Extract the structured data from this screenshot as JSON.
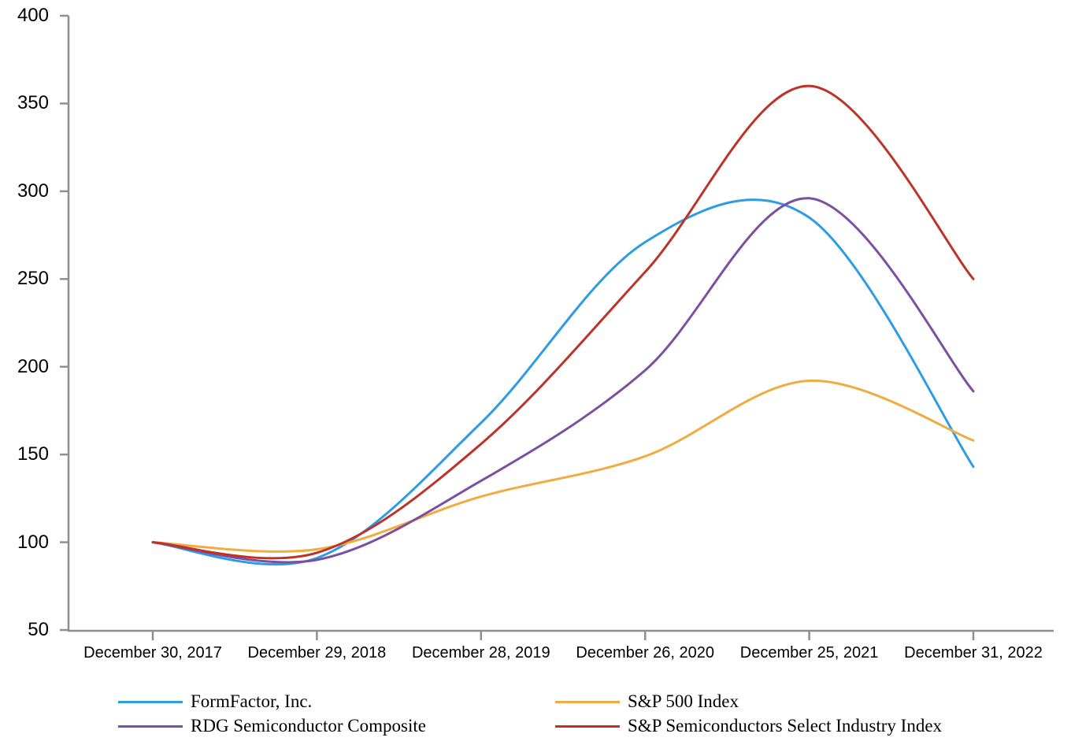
{
  "chart_data": {
    "type": "line",
    "title": "",
    "xlabel": "",
    "ylabel": "",
    "categories": [
      "December 30, 2017",
      "December 29, 2018",
      "December 28, 2019",
      "December 26, 2020",
      "December 25, 2021",
      "December 31, 2022"
    ],
    "y_ticks": [
      50,
      100,
      150,
      200,
      250,
      300,
      350,
      400
    ],
    "ylim": [
      50,
      400
    ],
    "grid": false,
    "legend_position": "bottom",
    "axis_color": "#8f8f8f",
    "series": [
      {
        "name": "FormFactor, Inc.",
        "color": "#2d9ce5",
        "values": [
          100,
          91,
          168,
          271,
          285,
          143
        ]
      },
      {
        "name": "S&P 500 Index",
        "color": "#f0ac41",
        "values": [
          100,
          96,
          126,
          149,
          192,
          158
        ]
      },
      {
        "name": "RDG Semiconductor Composite",
        "color": "#7c50a0",
        "values": [
          100,
          90,
          135,
          198,
          296,
          186
        ]
      },
      {
        "name": "S&P Semiconductors Select Industry Index",
        "color": "#bb3427",
        "values": [
          100,
          94,
          156,
          254,
          360,
          250
        ]
      }
    ]
  }
}
